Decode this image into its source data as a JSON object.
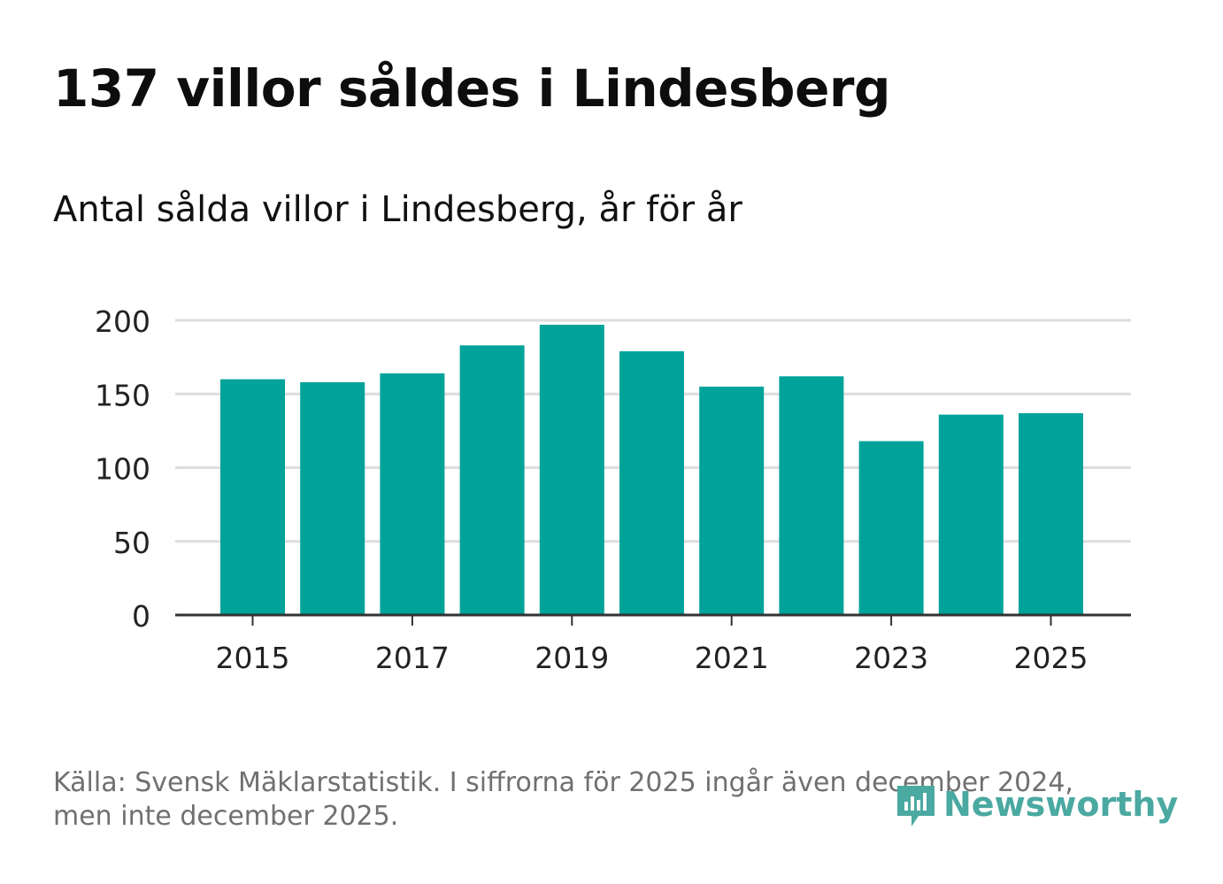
{
  "title": "137 villor såldes i Lindesberg",
  "subtitle": "Antal sålda villor i Lindesberg, år för år",
  "footnote_line1": "Källa: Svensk Mäklarstatistik. I siffrorna för 2025 ingår även december 2024,",
  "footnote_line2": "men inte december 2025.",
  "logo_text": "Newsworthy",
  "colors": {
    "bar": "#00a39a",
    "grid": "#dddddd",
    "axis": "#333333",
    "logo": "#4aa9a1"
  },
  "chart_data": {
    "type": "bar",
    "title": "Antal sålda villor i Lindesberg, år för år",
    "categories": [
      "2015",
      "2016",
      "2017",
      "2018",
      "2019",
      "2020",
      "2021",
      "2022",
      "2023",
      "2024",
      "2025"
    ],
    "values": [
      160,
      158,
      164,
      183,
      197,
      179,
      155,
      162,
      118,
      136,
      137
    ],
    "x_tick_labels": [
      "2015",
      "2017",
      "2019",
      "2021",
      "2023",
      "2025"
    ],
    "y_ticks": [
      0,
      50,
      100,
      150,
      200
    ],
    "ylim": [
      0,
      200
    ],
    "xlabel": "",
    "ylabel": "",
    "grid": true
  }
}
